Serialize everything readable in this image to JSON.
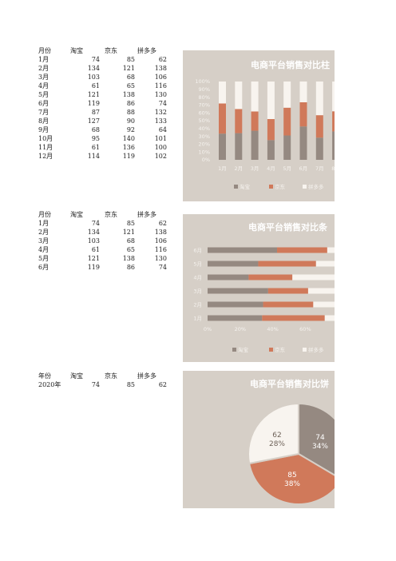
{
  "table1": {
    "headers": [
      "月份",
      "淘宝",
      "京东",
      "拼多多"
    ],
    "rows": [
      [
        "1月",
        "74",
        "85",
        "62"
      ],
      [
        "2月",
        "134",
        "121",
        "138"
      ],
      [
        "3月",
        "103",
        "68",
        "106"
      ],
      [
        "4月",
        "61",
        "65",
        "116"
      ],
      [
        "5月",
        "121",
        "138",
        "130"
      ],
      [
        "6月",
        "119",
        "86",
        "74"
      ],
      [
        "7月",
        "87",
        "88",
        "132"
      ],
      [
        "8月",
        "127",
        "90",
        "133"
      ],
      [
        "9月",
        "68",
        "92",
        "64"
      ],
      [
        "10月",
        "95",
        "140",
        "101"
      ],
      [
        "11月",
        "61",
        "136",
        "100"
      ],
      [
        "12月",
        "114",
        "119",
        "102"
      ]
    ]
  },
  "table2": {
    "headers": [
      "月份",
      "淘宝",
      "京东",
      "拼多多"
    ],
    "rows": [
      [
        "1月",
        "74",
        "85",
        "62"
      ],
      [
        "2月",
        "134",
        "121",
        "138"
      ],
      [
        "3月",
        "103",
        "68",
        "106"
      ],
      [
        "4月",
        "61",
        "65",
        "116"
      ],
      [
        "5月",
        "121",
        "138",
        "130"
      ],
      [
        "6月",
        "119",
        "86",
        "74"
      ]
    ]
  },
  "table3": {
    "headers": [
      "年份",
      "淘宝",
      "京东",
      "拼多多"
    ],
    "rows": [
      [
        "2020年",
        "74",
        "85",
        "62"
      ]
    ]
  },
  "colors": {
    "taobao": "#958981",
    "jd": "#d0795a",
    "pdd": "#f8f4ef",
    "panel": "#d6cfc7"
  },
  "chart_data": [
    {
      "type": "bar",
      "stacked": "percent",
      "orientation": "vertical",
      "title": "电商平台销售对比柱",
      "categories": [
        "1月",
        "2月",
        "3月",
        "4月",
        "5月",
        "6月",
        "7月",
        "8月"
      ],
      "series": [
        {
          "name": "淘宝",
          "values": [
            74,
            134,
            103,
            61,
            121,
            119,
            87,
            127
          ]
        },
        {
          "name": "京东",
          "values": [
            85,
            121,
            68,
            65,
            138,
            86,
            88,
            90
          ]
        },
        {
          "name": "拼多多",
          "values": [
            62,
            138,
            106,
            116,
            130,
            74,
            132,
            133
          ]
        }
      ],
      "yticks": [
        "0%",
        "10%",
        "20%",
        "30%",
        "40%",
        "50%",
        "60%",
        "70%",
        "80%",
        "90%",
        "100%"
      ],
      "ylim": [
        0,
        100
      ],
      "legend": "bottom"
    },
    {
      "type": "bar",
      "stacked": "percent",
      "orientation": "horizontal",
      "title": "电商平台销售对比条",
      "categories": [
        "1月",
        "2月",
        "3月",
        "4月",
        "5月",
        "6月"
      ],
      "series": [
        {
          "name": "淘宝",
          "values": [
            74,
            134,
            103,
            61,
            121,
            119
          ]
        },
        {
          "name": "京东",
          "values": [
            85,
            121,
            68,
            65,
            138,
            86
          ]
        },
        {
          "name": "拼多多",
          "values": [
            62,
            138,
            106,
            116,
            130,
            74
          ]
        }
      ],
      "xticks": [
        "0%",
        "20%",
        "40%",
        "60%"
      ],
      "legend": "bottom"
    },
    {
      "type": "pie",
      "title": "电商平台销售对比饼",
      "labels": [
        "淘宝",
        "京东",
        "拼多多"
      ],
      "values": [
        74,
        85,
        62
      ],
      "value_labels": [
        "74",
        "85",
        "62"
      ],
      "percent_labels": [
        "34%",
        "38%",
        "28%"
      ]
    }
  ]
}
